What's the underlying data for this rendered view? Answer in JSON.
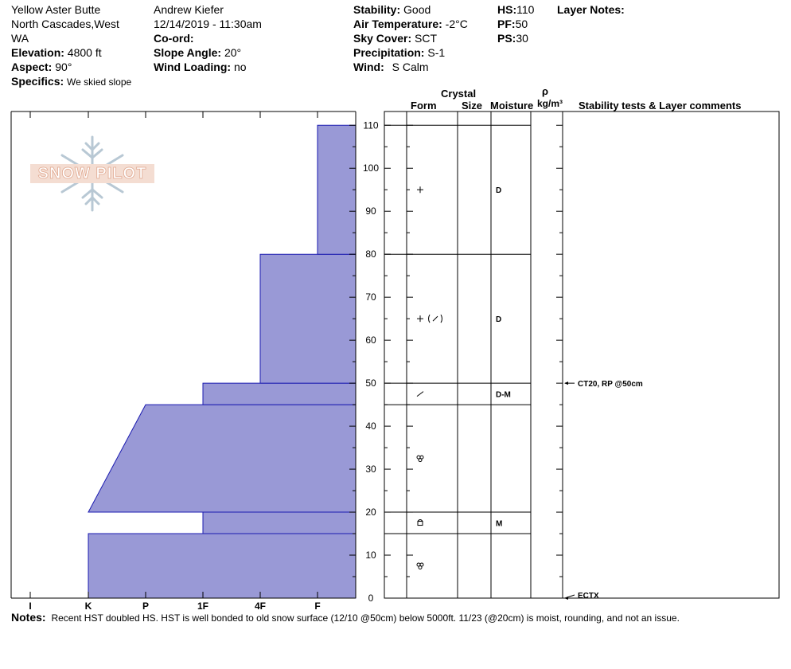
{
  "header": {
    "location_line1": "Yellow Aster Butte",
    "location_line2": "North Cascades,West",
    "location_line3": "WA",
    "elevation_label": "Elevation:",
    "elevation_value": "4800 ft",
    "aspect_label": "Aspect:",
    "aspect_value": "90°",
    "specifics_label": "Specifics:",
    "specifics_value": "We skied slope",
    "observer": "Andrew Kiefer",
    "datetime": "12/14/2019 - 11:30am",
    "coord_label": "Co-ord:",
    "slope_label": "Slope Angle:",
    "slope_value": "20°",
    "wind_loading_label": "Wind Loading:",
    "wind_loading_value": "no",
    "stability_label": "Stability:",
    "stability_value": "Good",
    "air_temp_label": "Air Temperature:",
    "air_temp_value": "-2°C",
    "sky_label": "Sky Cover:",
    "sky_value": "SCT",
    "precip_label": "Precipitation:",
    "precip_value": "S-1",
    "wind_label": "Wind:",
    "wind_value": "S Calm",
    "hs_label": "HS:",
    "hs_value": "110",
    "pf_label": "PF:",
    "pf_value": "50",
    "ps_label": "PS:",
    "ps_value": "30",
    "layer_notes_label": "Layer Notes:"
  },
  "logo": {
    "text": "SNOW PILOT"
  },
  "columns": {
    "crystal": "Crystal",
    "form": "Form",
    "size": "Size",
    "moisture": "Moisture",
    "rho": "ρ",
    "density_unit": "kg/m³",
    "stability_tests": "Stability tests & Layer comments"
  },
  "notes": {
    "label": "Notes:",
    "text": "Recent HST doubled HS. HST is well bonded to old snow surface (12/10 @50cm) below 5000ft. 11/23 (@20cm) is moist, rounding, and not an issue."
  },
  "chart_data": {
    "type": "area",
    "title": "",
    "ylabel": "",
    "ylim": [
      0,
      110
    ],
    "grid": false,
    "hardness_scale": [
      "I",
      "K",
      "P",
      "1F",
      "4F",
      "F"
    ],
    "y_ticks": [
      0,
      10,
      20,
      30,
      40,
      50,
      60,
      70,
      80,
      90,
      100,
      110
    ],
    "fill_color": "#9999d6",
    "layers": [
      {
        "bottom": 0,
        "top": 15,
        "hardness_bottom": "K",
        "hardness_top": "K",
        "form": "rounds",
        "moisture": ""
      },
      {
        "bottom": 15,
        "top": 20,
        "hardness_bottom": "1F",
        "hardness_top": "1F",
        "form": "faceted-rounds",
        "moisture": "M"
      },
      {
        "bottom": 20,
        "top": 45,
        "hardness_bottom": "K",
        "hardness_top": "P",
        "form": "rounds",
        "moisture": ""
      },
      {
        "bottom": 45,
        "top": 50,
        "hardness_bottom": "1F",
        "hardness_top": "1F",
        "form": "decomposing",
        "moisture": "D-M"
      },
      {
        "bottom": 50,
        "top": 80,
        "hardness_bottom": "4F",
        "hardness_top": "4F",
        "form": "new-snow-decomposing",
        "moisture": "D"
      },
      {
        "bottom": 80,
        "top": 110,
        "hardness_bottom": "F",
        "hardness_top": "F",
        "form": "new-snow",
        "moisture": "D"
      }
    ],
    "stability_tests": [
      {
        "depth": 50,
        "text": "CT20, RP @50cm"
      },
      {
        "depth": 0,
        "text": "ECTX"
      }
    ]
  }
}
